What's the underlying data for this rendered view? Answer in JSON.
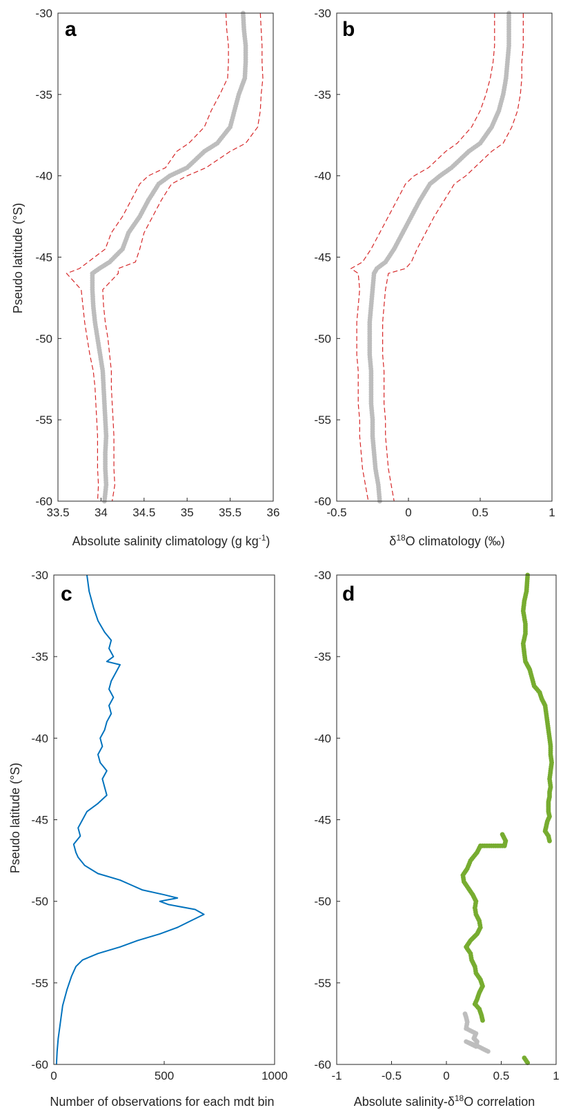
{
  "chart_data": [
    {
      "id": "a",
      "type": "scatter",
      "panel_label": "a",
      "xlabel": "Absolute salinity climatology (g kg",
      "xlabel_exponent": "-1",
      "xlabel_tail": ")",
      "ylabel": "Pseudo latitude (°S)",
      "xlim": [
        33.5,
        36
      ],
      "ylim": [
        -60,
        -30
      ],
      "xticks": [
        "33.5",
        "34",
        "34.5",
        "35",
        "35.5",
        "36"
      ],
      "yticks": [
        "-30",
        "-35",
        "-40",
        "-45",
        "-50",
        "-55",
        "-60"
      ],
      "grid": true,
      "minor_grid": true,
      "series": [
        {
          "role": "points",
          "color": "#bdbdbd",
          "x": [
            35.65,
            35.66,
            35.68,
            35.68,
            35.67,
            35.6,
            35.55,
            35.5,
            35.35,
            35.2,
            35.0,
            34.8,
            34.67,
            34.55,
            34.45,
            34.32,
            34.25,
            34.1,
            33.98,
            33.9,
            33.9,
            33.91,
            33.93,
            33.96,
            33.99,
            34.02,
            34.03,
            34.04,
            34.05,
            34.06,
            34.05,
            34.05,
            34.06,
            34.04
          ],
          "y": [
            -30.0,
            -31.0,
            -32.0,
            -33.0,
            -34.0,
            -35.0,
            -36.0,
            -37.0,
            -38.0,
            -38.5,
            -39.5,
            -40.0,
            -40.5,
            -41.5,
            -42.5,
            -43.5,
            -44.5,
            -45.3,
            -45.7,
            -46.0,
            -47.0,
            -48.0,
            -49.0,
            -50.0,
            -51.0,
            -52.0,
            -53.0,
            -54.0,
            -55.0,
            -56.0,
            -57.0,
            -58.0,
            -59.0,
            -60.0
          ]
        },
        {
          "role": "upper-bound",
          "color": "#d62728",
          "x": [
            35.85,
            35.86,
            35.87,
            35.87,
            35.88,
            35.86,
            35.85,
            35.82,
            35.68,
            35.5,
            35.22,
            35.0,
            34.82,
            34.7,
            34.6,
            34.5,
            34.45,
            34.4,
            34.2,
            34.2,
            34.02,
            34.03,
            34.05,
            34.08,
            34.1,
            34.12,
            34.12,
            34.13,
            34.14,
            34.15,
            34.15,
            34.15,
            34.16,
            34.13
          ],
          "y": [
            -30.0,
            -31.0,
            -32.0,
            -33.0,
            -34.0,
            -35.0,
            -36.0,
            -37.0,
            -38.0,
            -38.5,
            -39.5,
            -40.0,
            -40.5,
            -41.5,
            -42.5,
            -43.5,
            -44.5,
            -45.3,
            -45.7,
            -46.0,
            -47.0,
            -48.0,
            -49.0,
            -50.0,
            -51.0,
            -52.0,
            -53.0,
            -54.0,
            -55.0,
            -56.0,
            -57.0,
            -58.0,
            -59.0,
            -60.0
          ]
        },
        {
          "role": "lower-bound",
          "color": "#d62728",
          "x": [
            35.45,
            35.46,
            35.48,
            35.48,
            35.47,
            35.38,
            35.28,
            35.2,
            35.02,
            34.88,
            34.75,
            34.55,
            34.45,
            34.35,
            34.25,
            34.12,
            34.05,
            33.85,
            33.75,
            33.6,
            33.77,
            33.79,
            33.81,
            33.84,
            33.87,
            33.91,
            33.93,
            33.94,
            33.95,
            33.96,
            33.96,
            33.96,
            33.97,
            33.96
          ],
          "y": [
            -30.0,
            -31.0,
            -32.0,
            -33.0,
            -34.0,
            -35.0,
            -36.0,
            -37.0,
            -38.0,
            -38.5,
            -39.5,
            -40.0,
            -40.5,
            -41.5,
            -42.5,
            -43.5,
            -44.5,
            -45.3,
            -45.7,
            -46.0,
            -47.0,
            -48.0,
            -49.0,
            -50.0,
            -51.0,
            -52.0,
            -53.0,
            -54.0,
            -55.0,
            -56.0,
            -57.0,
            -58.0,
            -59.0,
            -60.0
          ]
        }
      ]
    },
    {
      "id": "b",
      "type": "scatter",
      "panel_label": "b",
      "xlabel_prefix": "δ",
      "xlabel_exponent": "18",
      "xlabel": "O climatology (‰)",
      "ylabel": "",
      "xlim": [
        -0.5,
        1
      ],
      "ylim": [
        -60,
        -30
      ],
      "xticks": [
        "-0.5",
        "0",
        "0.5",
        "1"
      ],
      "yticks": [
        "-30",
        "-35",
        "-40",
        "-45",
        "-50",
        "-55",
        "-60"
      ],
      "grid": true,
      "minor_grid": true,
      "series": [
        {
          "role": "points",
          "color": "#bdbdbd",
          "x": [
            0.7,
            0.7,
            0.7,
            0.69,
            0.68,
            0.66,
            0.63,
            0.58,
            0.5,
            0.42,
            0.3,
            0.22,
            0.15,
            0.08,
            0.02,
            -0.04,
            -0.1,
            -0.16,
            -0.22,
            -0.24,
            -0.25,
            -0.26,
            -0.27,
            -0.27,
            -0.27,
            -0.26,
            -0.26,
            -0.26,
            -0.25,
            -0.25,
            -0.24,
            -0.23,
            -0.21,
            -0.2
          ],
          "y": [
            -30.0,
            -31.0,
            -32.0,
            -33.0,
            -34.0,
            -35.0,
            -36.0,
            -37.0,
            -38.0,
            -38.5,
            -39.5,
            -40.0,
            -40.5,
            -41.5,
            -42.5,
            -43.5,
            -44.5,
            -45.3,
            -45.7,
            -46.0,
            -47.0,
            -48.0,
            -49.0,
            -50.0,
            -51.0,
            -52.0,
            -53.0,
            -54.0,
            -55.0,
            -56.0,
            -57.0,
            -58.0,
            -59.0,
            -60.0
          ]
        },
        {
          "role": "upper-bound",
          "color": "#d62728",
          "x": [
            0.8,
            0.8,
            0.8,
            0.79,
            0.79,
            0.78,
            0.76,
            0.72,
            0.66,
            0.58,
            0.46,
            0.4,
            0.32,
            0.25,
            0.18,
            0.12,
            0.06,
            0.02,
            -0.02,
            -0.14,
            -0.16,
            -0.17,
            -0.18,
            -0.18,
            -0.18,
            -0.17,
            -0.17,
            -0.17,
            -0.16,
            -0.16,
            -0.15,
            -0.14,
            -0.12,
            -0.1
          ],
          "y": [
            -30.0,
            -31.0,
            -32.0,
            -33.0,
            -34.0,
            -35.0,
            -36.0,
            -37.0,
            -38.0,
            -38.5,
            -39.5,
            -40.0,
            -40.5,
            -41.5,
            -42.5,
            -43.5,
            -44.5,
            -45.3,
            -45.7,
            -46.0,
            -47.0,
            -48.0,
            -49.0,
            -50.0,
            -51.0,
            -52.0,
            -53.0,
            -54.0,
            -55.0,
            -56.0,
            -57.0,
            -58.0,
            -59.0,
            -60.0
          ]
        },
        {
          "role": "lower-bound",
          "color": "#d62728",
          "x": [
            0.6,
            0.6,
            0.6,
            0.59,
            0.57,
            0.54,
            0.5,
            0.44,
            0.34,
            0.26,
            0.14,
            0.04,
            -0.02,
            -0.08,
            -0.14,
            -0.2,
            -0.26,
            -0.32,
            -0.4,
            -0.35,
            -0.34,
            -0.35,
            -0.36,
            -0.36,
            -0.36,
            -0.35,
            -0.35,
            -0.35,
            -0.34,
            -0.34,
            -0.33,
            -0.32,
            -0.3,
            -0.28
          ],
          "y": [
            -30.0,
            -31.0,
            -32.0,
            -33.0,
            -34.0,
            -35.0,
            -36.0,
            -37.0,
            -38.0,
            -38.5,
            -39.5,
            -40.0,
            -40.5,
            -41.5,
            -42.5,
            -43.5,
            -44.5,
            -45.3,
            -45.7,
            -46.0,
            -47.0,
            -48.0,
            -49.0,
            -50.0,
            -51.0,
            -52.0,
            -53.0,
            -54.0,
            -55.0,
            -56.0,
            -57.0,
            -58.0,
            -59.0,
            -60.0
          ]
        }
      ]
    },
    {
      "id": "c",
      "type": "line",
      "panel_label": "c",
      "xlabel": "Number of observations for each mdt bin",
      "ylabel": "Pseudo latitude (°S)",
      "xlim": [
        0,
        1000
      ],
      "ylim": [
        -60,
        -30
      ],
      "xticks": [
        "0",
        "500",
        "1000"
      ],
      "yticks": [
        "-30",
        "-35",
        "-40",
        "-45",
        "-50",
        "-55",
        "-60"
      ],
      "grid": true,
      "minor_grid": true,
      "series": [
        {
          "color": "#0072bd",
          "x": [
            150,
            160,
            180,
            200,
            230,
            260,
            250,
            270,
            240,
            300,
            280,
            260,
            250,
            270,
            250,
            260,
            240,
            230,
            210,
            220,
            200,
            210,
            240,
            220,
            230,
            240,
            200,
            150,
            130,
            110,
            120,
            90,
            100,
            110,
            140,
            200,
            300,
            350,
            400,
            500,
            560,
            480,
            520,
            640,
            680,
            620,
            560,
            480,
            380,
            300,
            200,
            130,
            100,
            80,
            60,
            40,
            30,
            20,
            15,
            12
          ],
          "y": [
            -30.0,
            -31.0,
            -32.0,
            -32.8,
            -33.5,
            -34.0,
            -34.5,
            -35.0,
            -35.3,
            -35.5,
            -36.0,
            -36.5,
            -37.0,
            -37.5,
            -38.0,
            -38.5,
            -39.0,
            -39.5,
            -40.0,
            -40.5,
            -41.0,
            -41.5,
            -42.0,
            -42.5,
            -43.0,
            -43.5,
            -44.0,
            -44.5,
            -45.0,
            -45.5,
            -46.0,
            -46.5,
            -47.0,
            -47.3,
            -47.8,
            -48.3,
            -48.7,
            -49.0,
            -49.3,
            -49.6,
            -49.8,
            -50.0,
            -50.2,
            -50.5,
            -50.8,
            -51.2,
            -51.6,
            -52.0,
            -52.4,
            -52.8,
            -53.2,
            -53.6,
            -54.0,
            -54.6,
            -55.4,
            -56.4,
            -57.4,
            -58.4,
            -59.2,
            -60.0
          ]
        }
      ]
    },
    {
      "id": "d",
      "type": "scatter",
      "panel_label": "d",
      "xlabel_prefix": "Absolute salinity-δ",
      "xlabel_exponent": "18",
      "xlabel": "O correlation",
      "ylabel": "",
      "xlim": [
        -1,
        1
      ],
      "ylim": [
        -60,
        -30
      ],
      "xticks": [
        "-1",
        "-0.5",
        "0",
        "0.5",
        "1"
      ],
      "yticks": [
        "-30",
        "-35",
        "-40",
        "-45",
        "-50",
        "-55",
        "-60"
      ],
      "grid": true,
      "minor_grid": true,
      "series": [
        {
          "role": "significant",
          "color": "#77ac30",
          "x": [
            0.74,
            0.73,
            0.71,
            0.7,
            0.72,
            0.72,
            0.7,
            0.71,
            0.72,
            0.76,
            0.78,
            0.8,
            0.85,
            0.87,
            0.9,
            0.91,
            0.92,
            0.93,
            0.94,
            0.95,
            0.95,
            0.96,
            0.95,
            0.94,
            0.95,
            0.94,
            0.94,
            0.93,
            0.93,
            0.93,
            0.94,
            0.92,
            0.91,
            0.9,
            0.93,
            0.94,
            0.51,
            0.54,
            0.53,
            0.31,
            0.28,
            0.22,
            0.19,
            0.15,
            0.16,
            0.2,
            0.24,
            0.27,
            0.26,
            0.27,
            0.3,
            0.31,
            0.28,
            0.22,
            0.18,
            0.22,
            0.23,
            0.26,
            0.27,
            0.31,
            0.33,
            0.3,
            0.28,
            0.26,
            0.3,
            0.32,
            0.33,
            0.71,
            0.74
          ],
          "y": [
            -30.0,
            -31.0,
            -31.6,
            -32.2,
            -33.0,
            -33.6,
            -34.2,
            -34.8,
            -35.3,
            -35.8,
            -36.3,
            -36.8,
            -37.2,
            -37.6,
            -38.0,
            -38.5,
            -39.0,
            -39.5,
            -40.0,
            -40.5,
            -41.0,
            -41.5,
            -42.0,
            -42.5,
            -43.0,
            -43.3,
            -43.6,
            -43.9,
            -44.2,
            -44.5,
            -44.8,
            -45.1,
            -45.4,
            -45.7,
            -46.0,
            -46.3,
            -45.9,
            -46.3,
            -46.6,
            -46.6,
            -47.0,
            -47.5,
            -48.0,
            -48.4,
            -48.8,
            -49.2,
            -49.6,
            -50.0,
            -50.4,
            -50.8,
            -51.2,
            -51.6,
            -52.0,
            -52.4,
            -52.8,
            -53.2,
            -53.6,
            -54.0,
            -54.4,
            -54.8,
            -55.2,
            -55.6,
            -56.0,
            -56.3,
            -56.6,
            -57.0,
            -57.3,
            -59.6,
            -59.9
          ]
        },
        {
          "role": "not-significant",
          "color": "#bdbdbd",
          "x": [
            0.17,
            0.18,
            0.19,
            0.18,
            0.27,
            0.25,
            0.28,
            0.27,
            0.18,
            0.29,
            0.38
          ],
          "y": [
            -56.9,
            -57.1,
            -57.4,
            -57.8,
            -58.1,
            -58.4,
            -58.6,
            -58.9,
            -58.6,
            -58.9,
            -59.2
          ]
        }
      ]
    }
  ]
}
